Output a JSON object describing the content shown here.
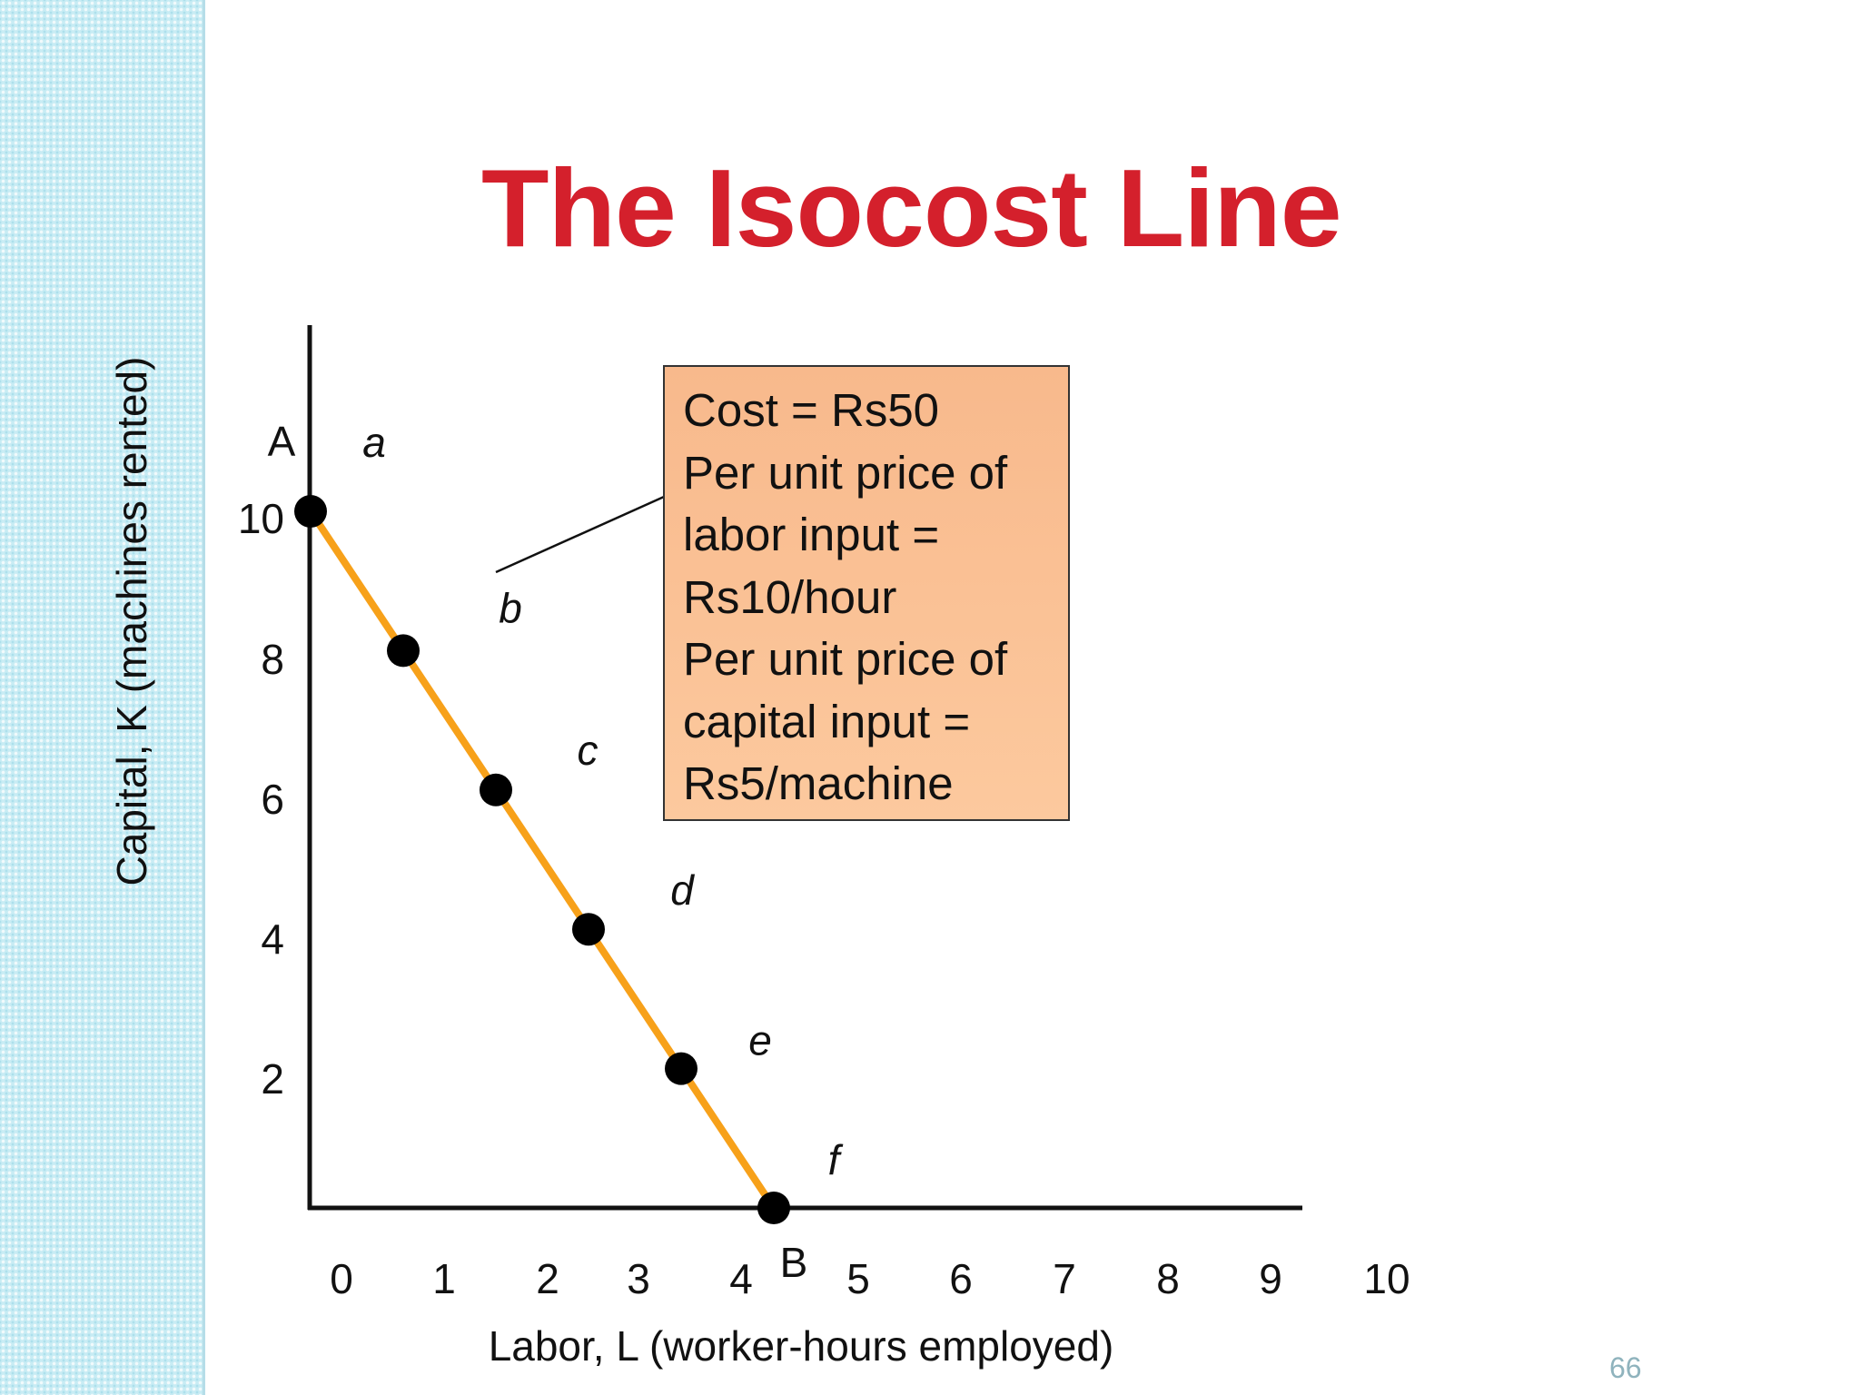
{
  "slide": {
    "title": "The Isocost Line",
    "page_number": "66"
  },
  "info_box": {
    "lines": [
      "Cost = Rs50",
      "Per unit price of",
      "labor input  =",
      "Rs10/hour",
      "Per unit price of",
      "capital input  =",
      "Rs5/machine"
    ]
  },
  "colors": {
    "title": "#d4202c",
    "isocost_line": "#f7a11a",
    "points": "#000000",
    "info_box_fill": "#fbc195",
    "left_strip": "#c8ecf4"
  },
  "chart_data": {
    "type": "line",
    "title": "",
    "xlabel": "Labor, L (worker-hours employed)",
    "ylabel": "Capital, K (machines rented)",
    "xlim": [
      0,
      10
    ],
    "ylim": [
      0,
      10
    ],
    "x_tick_labels": [
      "0",
      "1",
      "2",
      "3",
      "4",
      "5",
      "6",
      "7",
      "8",
      "9",
      "10"
    ],
    "y_tick_labels": [
      "10",
      "8",
      "6",
      "4",
      "2"
    ],
    "series": [
      {
        "points": [
          {
            "x": 0,
            "y": 10,
            "label": "a"
          },
          {
            "x": 1,
            "y": 8,
            "label": "b"
          },
          {
            "x": 2,
            "y": 6,
            "label": "c"
          },
          {
            "x": 3,
            "y": 4,
            "label": "d"
          },
          {
            "x": 4,
            "y": 2,
            "label": "e"
          },
          {
            "x": 5,
            "y": 0,
            "label": "f"
          }
        ]
      }
    ],
    "endpoint_labels": {
      "y_intercept": "A",
      "x_intercept": "B"
    },
    "grid": false,
    "legend": "none"
  }
}
